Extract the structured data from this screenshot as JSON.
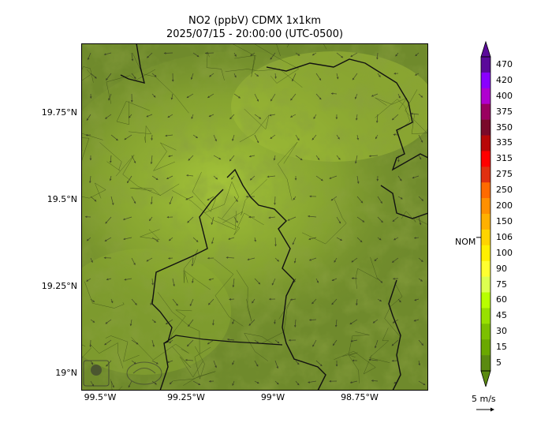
{
  "title": {
    "line1": "NO2 (ppbV) CDMX 1x1km",
    "line2": "2025/07/15 - 20:00:00 (UTC-0500)"
  },
  "axes": {
    "y_ticks": [
      "19.75°N",
      "19.5°N",
      "19.25°N",
      "19°N"
    ],
    "x_ticks": [
      "99.5°W",
      "99.25°W",
      "99°W",
      "98.75°W"
    ]
  },
  "colorbar": {
    "labels": [
      "470",
      "420",
      "400",
      "375",
      "350",
      "335",
      "315",
      "275",
      "250",
      "200",
      "150",
      "106",
      "100",
      "90",
      "75",
      "60",
      "45",
      "30",
      "15",
      "5"
    ],
    "colors": [
      "#5a0a9a",
      "#8a00ff",
      "#b000d0",
      "#9a0060",
      "#7a0a2a",
      "#b80808",
      "#ff0000",
      "#e03010",
      "#ff6a00",
      "#ff9000",
      "#ffb000",
      "#ffd400",
      "#fff000",
      "#ffff30",
      "#ddff50",
      "#b8ff00",
      "#98e000",
      "#7cc000",
      "#6aa800",
      "#5a8a10"
    ],
    "nom_label": "NOM",
    "nom_value": 106
  },
  "wind_legend": {
    "label": "5 m/s"
  },
  "palette": {
    "map_base": "#6f8a2c",
    "map_light": "#a9c23a",
    "boundary": "#111111"
  }
}
